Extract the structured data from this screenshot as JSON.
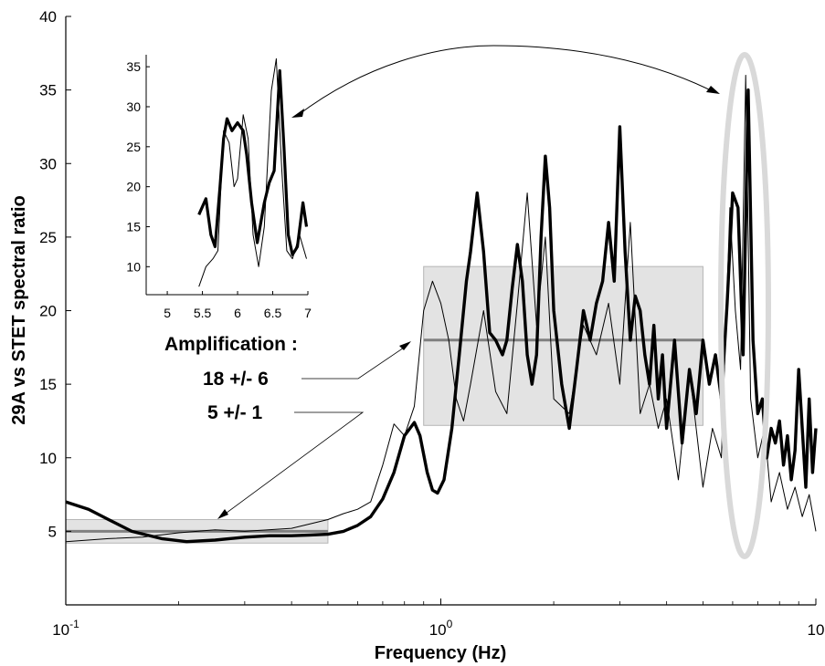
{
  "chart_data": {
    "type": "line",
    "xlabel": "Frequency (Hz)",
    "ylabel": "29A vs STET spectral ratio",
    "x_scale": "log",
    "xlim": [
      0.1,
      10
    ],
    "ylim": [
      0,
      40
    ],
    "x_ticks": [
      0.1,
      1,
      10
    ],
    "x_tick_labels": [
      {
        "base": "10",
        "exp": "-1"
      },
      {
        "base": "10",
        "exp": "0"
      },
      {
        "base": "10",
        "exp": ""
      }
    ],
    "y_ticks": [
      5,
      10,
      15,
      20,
      25,
      30,
      35,
      40
    ],
    "y_tick_labels": [
      "5",
      "10",
      "15",
      "20",
      "25",
      "30",
      "35",
      "40"
    ],
    "grid": false,
    "series": [
      {
        "line": "thick",
        "color": "#000000",
        "points": [
          [
            0.1,
            7.0
          ],
          [
            0.115,
            6.5
          ],
          [
            0.13,
            5.8
          ],
          [
            0.15,
            5.0
          ],
          [
            0.18,
            4.5
          ],
          [
            0.21,
            4.3
          ],
          [
            0.25,
            4.4
          ],
          [
            0.3,
            4.6
          ],
          [
            0.35,
            4.7
          ],
          [
            0.4,
            4.7
          ],
          [
            0.45,
            4.75
          ],
          [
            0.5,
            4.8
          ],
          [
            0.55,
            5.0
          ],
          [
            0.6,
            5.4
          ],
          [
            0.65,
            6.0
          ],
          [
            0.7,
            7.2
          ],
          [
            0.75,
            9.0
          ],
          [
            0.8,
            11.5
          ],
          [
            0.85,
            12.4
          ],
          [
            0.88,
            11.5
          ],
          [
            0.92,
            9.0
          ],
          [
            0.95,
            7.8
          ],
          [
            0.98,
            7.6
          ],
          [
            1.02,
            8.5
          ],
          [
            1.07,
            12.0
          ],
          [
            1.12,
            17.0
          ],
          [
            1.17,
            22.0
          ],
          [
            1.2,
            24.0
          ],
          [
            1.25,
            28.0
          ],
          [
            1.3,
            24.0
          ],
          [
            1.35,
            18.5
          ],
          [
            1.4,
            18.0
          ],
          [
            1.46,
            17.0
          ],
          [
            1.5,
            18.0
          ],
          [
            1.55,
            21.5
          ],
          [
            1.6,
            24.5
          ],
          [
            1.65,
            22.0
          ],
          [
            1.7,
            17.0
          ],
          [
            1.75,
            15.0
          ],
          [
            1.8,
            17.0
          ],
          [
            1.85,
            25.0
          ],
          [
            1.9,
            30.5
          ],
          [
            1.95,
            27.0
          ],
          [
            2.0,
            20.0
          ],
          [
            2.1,
            15.0
          ],
          [
            2.2,
            12.0
          ],
          [
            2.3,
            16.0
          ],
          [
            2.4,
            20.0
          ],
          [
            2.5,
            18.0
          ],
          [
            2.6,
            20.5
          ],
          [
            2.7,
            22.0
          ],
          [
            2.8,
            26.0
          ],
          [
            2.9,
            22.0
          ],
          [
            3.0,
            32.5
          ],
          [
            3.1,
            24.0
          ],
          [
            3.2,
            18.0
          ],
          [
            3.3,
            21.0
          ],
          [
            3.4,
            20.0
          ],
          [
            3.5,
            17.0
          ],
          [
            3.6,
            15.0
          ],
          [
            3.7,
            19.0
          ],
          [
            3.8,
            14.0
          ],
          [
            3.9,
            17.0
          ],
          [
            4.0,
            12.0
          ],
          [
            4.2,
            18.0
          ],
          [
            4.4,
            11.0
          ],
          [
            4.6,
            16.0
          ],
          [
            4.8,
            13.0
          ],
          [
            5.0,
            18.0
          ],
          [
            5.2,
            15.0
          ],
          [
            5.4,
            17.0
          ],
          [
            5.6,
            14.0
          ],
          [
            5.8,
            20.5
          ],
          [
            6.0,
            28.0
          ],
          [
            6.2,
            27.0
          ],
          [
            6.4,
            17.0
          ],
          [
            6.6,
            35.0
          ],
          [
            6.8,
            18.0
          ],
          [
            7.0,
            13.0
          ],
          [
            7.2,
            14.0
          ],
          [
            7.4,
            10.0
          ],
          [
            7.6,
            12.0
          ],
          [
            7.8,
            11.0
          ],
          [
            8.0,
            12.5
          ],
          [
            8.2,
            9.5
          ],
          [
            8.4,
            11.5
          ],
          [
            8.6,
            8.5
          ],
          [
            8.8,
            10.5
          ],
          [
            9.0,
            16.0
          ],
          [
            9.2,
            12.0
          ],
          [
            9.4,
            8.0
          ],
          [
            9.6,
            14.0
          ],
          [
            9.8,
            9.0
          ],
          [
            10.0,
            12.0
          ]
        ]
      },
      {
        "line": "thin",
        "color": "#000000",
        "points": [
          [
            0.1,
            4.3
          ],
          [
            0.13,
            4.5
          ],
          [
            0.16,
            4.6
          ],
          [
            0.2,
            4.9
          ],
          [
            0.25,
            5.1
          ],
          [
            0.3,
            5.0
          ],
          [
            0.4,
            5.2
          ],
          [
            0.5,
            5.8
          ],
          [
            0.55,
            6.2
          ],
          [
            0.6,
            6.5
          ],
          [
            0.65,
            7.0
          ],
          [
            0.7,
            9.5
          ],
          [
            0.75,
            12.3
          ],
          [
            0.8,
            11.5
          ],
          [
            0.85,
            13.5
          ],
          [
            0.9,
            20.0
          ],
          [
            0.95,
            22.0
          ],
          [
            1.0,
            20.5
          ],
          [
            1.05,
            18.0
          ],
          [
            1.1,
            14.0
          ],
          [
            1.15,
            12.5
          ],
          [
            1.2,
            15.0
          ],
          [
            1.3,
            20.0
          ],
          [
            1.4,
            14.5
          ],
          [
            1.5,
            13.0
          ],
          [
            1.6,
            20.5
          ],
          [
            1.7,
            28.0
          ],
          [
            1.8,
            19.0
          ],
          [
            1.9,
            25.0
          ],
          [
            2.0,
            14.0
          ],
          [
            2.2,
            13.0
          ],
          [
            2.4,
            19.0
          ],
          [
            2.6,
            17.0
          ],
          [
            2.8,
            20.5
          ],
          [
            3.0,
            15.0
          ],
          [
            3.2,
            26.0
          ],
          [
            3.4,
            13.0
          ],
          [
            3.6,
            15.0
          ],
          [
            3.8,
            12.0
          ],
          [
            4.0,
            14.0
          ],
          [
            4.3,
            8.5
          ],
          [
            4.6,
            16.0
          ],
          [
            5.0,
            8.0
          ],
          [
            5.3,
            12.0
          ],
          [
            5.6,
            10.0
          ],
          [
            5.9,
            27.0
          ],
          [
            6.1,
            20.0
          ],
          [
            6.3,
            16.0
          ],
          [
            6.5,
            36.0
          ],
          [
            6.7,
            14.0
          ],
          [
            7.0,
            10.0
          ],
          [
            7.3,
            12.0
          ],
          [
            7.6,
            7.0
          ],
          [
            8.0,
            9.0
          ],
          [
            8.4,
            6.5
          ],
          [
            8.8,
            8.0
          ],
          [
            9.2,
            6.0
          ],
          [
            9.6,
            7.5
          ],
          [
            10.0,
            5.0
          ]
        ]
      }
    ],
    "shaded_boxes": [
      {
        "x0": 0.1,
        "x1": 0.5,
        "y0": 4.2,
        "y1": 5.8,
        "level": 5
      },
      {
        "x0": 0.9,
        "x1": 5.0,
        "y0": 12.2,
        "y1": 23.0,
        "level": 18
      }
    ],
    "annotations": [
      {
        "text": "Amplification :"
      },
      {
        "text": "18 +/- 6"
      },
      {
        "text": "5 +/- 1"
      }
    ],
    "inset": {
      "xlim": [
        4.7,
        7.0
      ],
      "ylim": [
        6.5,
        36.5
      ],
      "x_tick_labels": [
        "5",
        "5.5",
        "6",
        "6.5",
        "7"
      ],
      "x_ticks": [
        5,
        5.5,
        6,
        6.5,
        7
      ],
      "y_tick_labels": [
        "10",
        "15",
        "20",
        "25",
        "30",
        "35"
      ],
      "y_ticks": [
        10,
        15,
        20,
        25,
        30,
        35
      ],
      "series": [
        {
          "line": "thick",
          "points": [
            [
              5.45,
              16.5
            ],
            [
              5.55,
              18.5
            ],
            [
              5.62,
              14.0
            ],
            [
              5.68,
              12.5
            ],
            [
              5.75,
              20.0
            ],
            [
              5.8,
              26.0
            ],
            [
              5.85,
              28.5
            ],
            [
              5.92,
              27.0
            ],
            [
              6.0,
              28.0
            ],
            [
              6.08,
              27.0
            ],
            [
              6.13,
              24.0
            ],
            [
              6.2,
              18.0
            ],
            [
              6.28,
              13.0
            ],
            [
              6.38,
              18.0
            ],
            [
              6.45,
              20.5
            ],
            [
              6.52,
              22.0
            ],
            [
              6.6,
              34.5
            ],
            [
              6.66,
              25.0
            ],
            [
              6.72,
              14.0
            ],
            [
              6.78,
              11.5
            ],
            [
              6.85,
              12.5
            ],
            [
              6.93,
              18.0
            ],
            [
              6.98,
              15.0
            ]
          ]
        },
        {
          "line": "thin",
          "points": [
            [
              5.45,
              7.5
            ],
            [
              5.55,
              10.0
            ],
            [
              5.65,
              11.0
            ],
            [
              5.72,
              12.0
            ],
            [
              5.8,
              27.0
            ],
            [
              5.88,
              25.5
            ],
            [
              5.95,
              20.0
            ],
            [
              6.0,
              21.0
            ],
            [
              6.08,
              29.0
            ],
            [
              6.15,
              26.0
            ],
            [
              6.22,
              14.0
            ],
            [
              6.3,
              10.0
            ],
            [
              6.38,
              15.0
            ],
            [
              6.48,
              32.0
            ],
            [
              6.55,
              36.0
            ],
            [
              6.63,
              22.0
            ],
            [
              6.7,
              12.0
            ],
            [
              6.78,
              11.0
            ],
            [
              6.88,
              14.0
            ],
            [
              6.98,
              11.0
            ]
          ]
        }
      ]
    }
  }
}
